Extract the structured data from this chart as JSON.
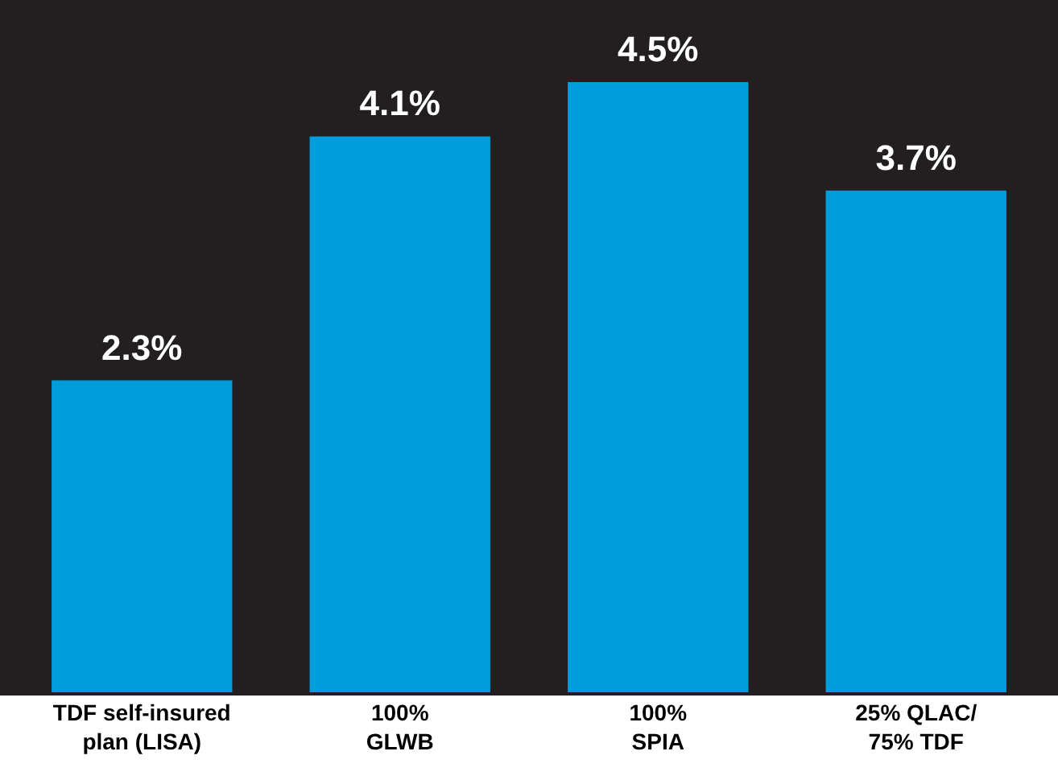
{
  "chart_data": {
    "type": "bar",
    "categories": [
      "TDF self-insured plan (LISA)",
      "100% GLWB",
      "100% SPIA",
      "25% QLAC/ 75% TDF"
    ],
    "values": [
      2.3,
      4.1,
      4.5,
      3.7
    ],
    "value_labels": [
      "2.3%",
      "4.1%",
      "4.5%",
      "3.7%"
    ],
    "color": "#009ddc"
  }
}
